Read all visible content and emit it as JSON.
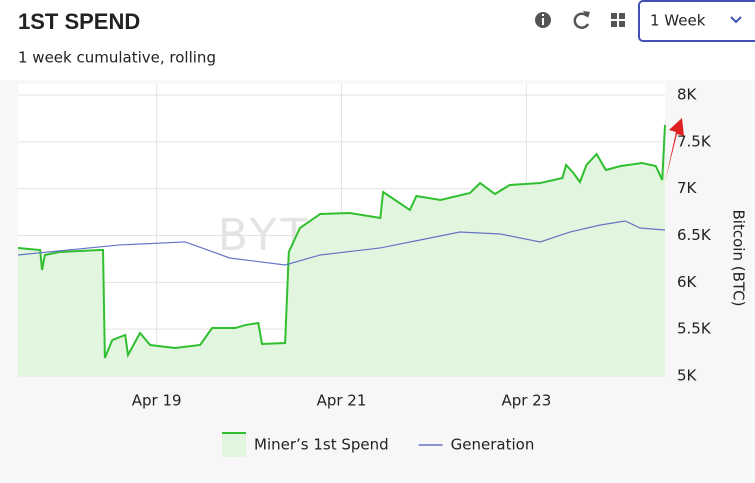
{
  "header": {
    "title": "1ST SPEND",
    "subtitle": "1 week cumulative, rolling",
    "period": "1 Week"
  },
  "chart_data": {
    "type": "line",
    "watermark": "BYTETREE",
    "y_label": "Bitcoin (BTC)",
    "xlim": [
      17.5,
      24.5
    ],
    "xticks": [
      {
        "value": 19,
        "label": "Apr 19"
      },
      {
        "value": 21,
        "label": "Apr 21"
      },
      {
        "value": 23,
        "label": "Apr 23"
      }
    ],
    "ylim": [
      5000,
      8000
    ],
    "yticks": [
      {
        "value": 5000,
        "label": "5K"
      },
      {
        "value": 5500,
        "label": "5.5K"
      },
      {
        "value": 6000,
        "label": "6K"
      },
      {
        "value": 6500,
        "label": "6.5K"
      },
      {
        "value": 7000,
        "label": "7K"
      },
      {
        "value": 7500,
        "label": "7.5K"
      },
      {
        "value": 8000,
        "label": "8K"
      }
    ],
    "grid": true,
    "series": [
      {
        "name": "Miner’s 1st Spend",
        "color": "#2fbf2f",
        "fill": "#e2f5df",
        "x": [
          17.5,
          17.74,
          17.76,
          17.79,
          17.95,
          18.39,
          18.42,
          18.44,
          18.52,
          18.66,
          18.69,
          18.82,
          18.93,
          19.2,
          19.47,
          19.6,
          19.85,
          19.96,
          20.1,
          20.14,
          20.39,
          20.43,
          20.55,
          20.77,
          21.09,
          21.42,
          21.45,
          21.58,
          21.74,
          21.81,
          22.07,
          22.39,
          22.5,
          22.66,
          22.82,
          23.15,
          23.39,
          23.43,
          23.5,
          23.58,
          23.65,
          23.76,
          23.86,
          24.02,
          24.25,
          24.4,
          24.47,
          24.5
        ],
        "values": [
          6367,
          6345,
          6132,
          6292,
          6324,
          6345,
          6345,
          5192,
          5384,
          5438,
          5224,
          5459,
          5331,
          5299,
          5331,
          5512,
          5512,
          5544,
          5566,
          5342,
          5352,
          6324,
          6580,
          6730,
          6740,
          6687,
          6964,
          6879,
          6772,
          6922,
          6879,
          6954,
          7060,
          6943,
          7039,
          7060,
          7114,
          7253,
          7178,
          7071,
          7253,
          7370,
          7199,
          7242,
          7274,
          7242,
          7093,
          7680
        ]
      },
      {
        "name": "Generation",
        "color": "#6674c6",
        "x": [
          17.5,
          18.6,
          19.31,
          19.79,
          20.39,
          20.77,
          21.42,
          21.85,
          22.28,
          22.72,
          23.15,
          23.47,
          23.8,
          24.07,
          24.23,
          24.5
        ],
        "values": [
          6292,
          6399,
          6431,
          6260,
          6185,
          6292,
          6367,
          6452,
          6537,
          6516,
          6431,
          6537,
          6612,
          6655,
          6580,
          6559
        ]
      }
    ]
  }
}
